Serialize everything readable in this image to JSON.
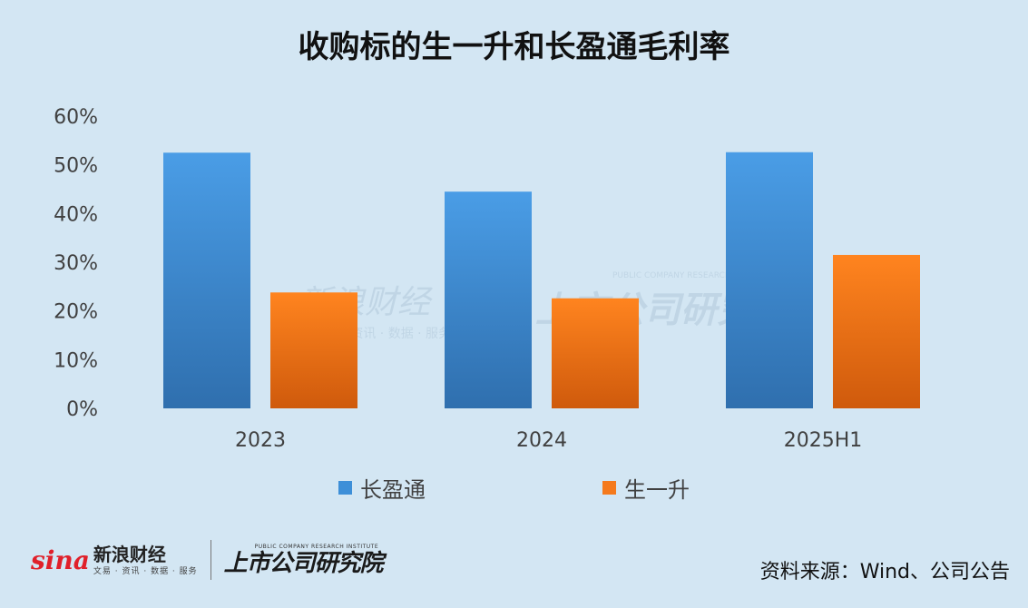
{
  "title": "收购标的生一升和长盈通毛利率",
  "source": "资料来源：Wind、公司公告",
  "watermark": {
    "brand_cn": "新浪财经",
    "brand_sub": "文易 · 资讯 · 数据 · 服务",
    "institute_cn": "上市公司研究院",
    "institute_en": "PUBLIC COMPANY RESEARCH INSTITUTE"
  },
  "footer_logo": {
    "sina_mark": "sina",
    "brand_cn": "新浪财经",
    "brand_sub": "文易 · 资讯 · 数据 · 服务",
    "institute_en": "PUBLIC COMPANY RESEARCH INSTITUTE",
    "institute_cn": "上市公司研究院"
  },
  "chart_data": {
    "type": "bar",
    "title": "收购标的生一升和长盈通毛利率",
    "categories": [
      "2023",
      "2024",
      "2025H1"
    ],
    "series": [
      {
        "name": "长盈通",
        "values": [
          52.5,
          44.5,
          52.6
        ],
        "color": "#3d8fd8"
      },
      {
        "name": "生一升",
        "values": [
          23.8,
          22.6,
          31.5
        ],
        "color": "#f57a1c"
      }
    ],
    "ylim": [
      0,
      60
    ],
    "yticks": [
      "0%",
      "10%",
      "20%",
      "30%",
      "40%",
      "50%",
      "60%"
    ],
    "grid": false,
    "legend_position": "bottom"
  }
}
